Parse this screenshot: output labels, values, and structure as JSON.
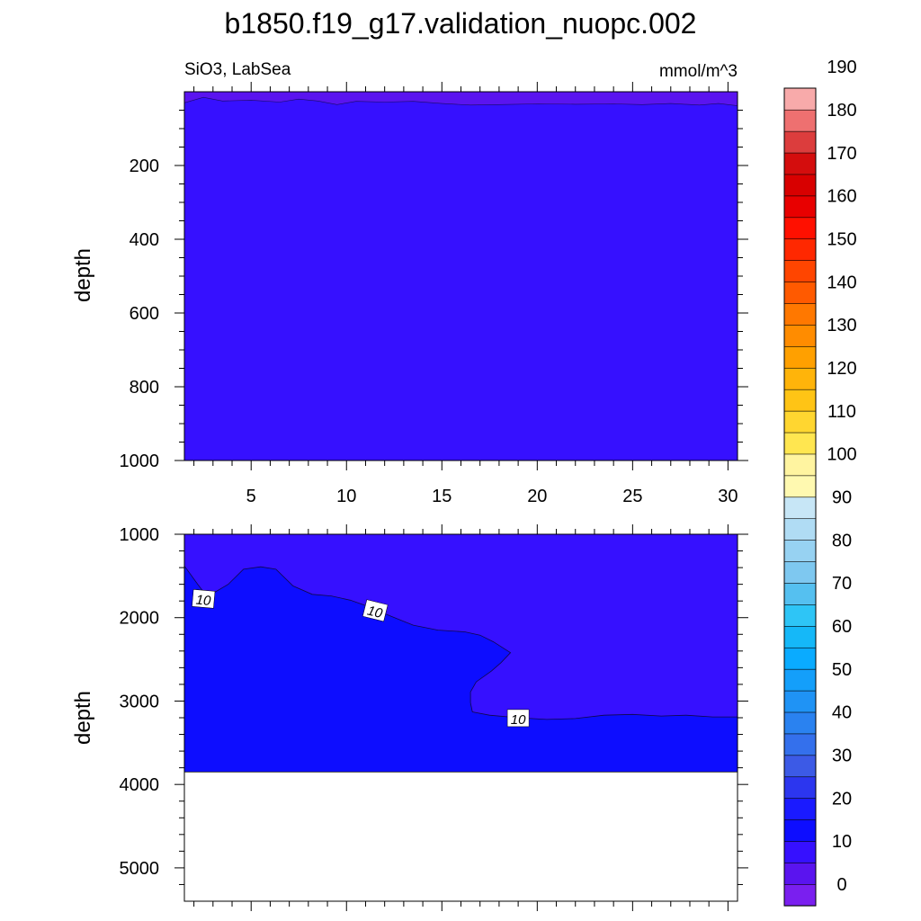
{
  "title": "b1850.f19_g17.validation_nuopc.002",
  "chart_data": [
    {
      "type": "contour",
      "panel": "top",
      "left_string": "SiO3, LabSea",
      "right_string": "mmol/m^3",
      "ylabel": "depth",
      "xlabel": "",
      "xlim": [
        1.5,
        30.5
      ],
      "ylim": [
        0,
        1000
      ],
      "y_reversed": true,
      "x_ticks": [
        "5",
        "10",
        "15",
        "20",
        "25",
        "30"
      ],
      "y_ticks": [
        "200",
        "400",
        "600",
        "800",
        "1000"
      ],
      "fill_level_color": "#3610ff",
      "surface_level_color": "#5a14ef",
      "surface_boundary_depth": [
        [
          1.5,
          30
        ],
        [
          2.5,
          15
        ],
        [
          3.5,
          25
        ],
        [
          5,
          23
        ],
        [
          6.5,
          28
        ],
        [
          7.5,
          20
        ],
        [
          8.5,
          25
        ],
        [
          9.5,
          35
        ],
        [
          10.5,
          26
        ],
        [
          12,
          28
        ],
        [
          13.5,
          26
        ],
        [
          15,
          32
        ],
        [
          16.5,
          36
        ],
        [
          18,
          35
        ],
        [
          20,
          33
        ],
        [
          22,
          34
        ],
        [
          24,
          33
        ],
        [
          25.5,
          35
        ],
        [
          27,
          32
        ],
        [
          28.5,
          36
        ],
        [
          29.5,
          32
        ],
        [
          30.5,
          38
        ]
      ]
    },
    {
      "type": "contour",
      "panel": "bottom",
      "ylabel": "depth",
      "xlabel": "",
      "xlim": [
        1.5,
        30.5
      ],
      "ylim": [
        1000,
        5400
      ],
      "y_reversed": true,
      "y_ticks": [
        "1000",
        "2000",
        "3000",
        "4000",
        "5000"
      ],
      "ocean_bottom_depth": 3850,
      "contour_value_label": "10",
      "contour_label_positions": [
        [
          2.5,
          1780
        ],
        [
          11.5,
          1920
        ],
        [
          19,
          3210
        ]
      ],
      "upper_fill_color": "#3610ff",
      "lower_fill_color": "#0d0dff",
      "contour_10_line": [
        [
          1.5,
          1380
        ],
        [
          2.2,
          1600
        ],
        [
          2.7,
          1750
        ],
        [
          3.8,
          1600
        ],
        [
          4.6,
          1420
        ],
        [
          5.5,
          1390
        ],
        [
          6.3,
          1420
        ],
        [
          7.2,
          1620
        ],
        [
          8.2,
          1720
        ],
        [
          9.2,
          1740
        ],
        [
          10.2,
          1790
        ],
        [
          11.2,
          1870
        ],
        [
          12.3,
          1980
        ],
        [
          13.5,
          2090
        ],
        [
          14.8,
          2150
        ],
        [
          16.2,
          2170
        ],
        [
          17,
          2210
        ],
        [
          17.7,
          2290
        ],
        [
          18.6,
          2420
        ],
        [
          18.1,
          2540
        ],
        [
          17.6,
          2640
        ],
        [
          16.8,
          2770
        ],
        [
          16.5,
          2890
        ],
        [
          16.5,
          3020
        ],
        [
          16.6,
          3130
        ],
        [
          17.5,
          3170
        ],
        [
          19,
          3200
        ],
        [
          20.5,
          3220
        ],
        [
          22,
          3210
        ],
        [
          23.5,
          3170
        ],
        [
          25,
          3160
        ],
        [
          26.5,
          3180
        ],
        [
          27.8,
          3170
        ],
        [
          29.2,
          3190
        ],
        [
          30.5,
          3190
        ]
      ]
    }
  ],
  "colorbar": {
    "labels": [
      "0",
      "10",
      "20",
      "30",
      "40",
      "50",
      "60",
      "70",
      "80",
      "90",
      "100",
      "110",
      "120",
      "130",
      "140",
      "150",
      "160",
      "170",
      "180",
      "190"
    ],
    "colors": [
      "#7a1fef",
      "#5a14ef",
      "#3610ff",
      "#0d0dff",
      "#1a1aff",
      "#2c36ef",
      "#3c5ae6",
      "#3470ec",
      "#2a82f0",
      "#1f93f5",
      "#149ffa",
      "#0aabff",
      "#15b8f8",
      "#2ec5f6",
      "#55c0f0",
      "#7ec8f0",
      "#97d2f2",
      "#b0dcf4",
      "#c7e6f6",
      "#fff9b0",
      "#fff4a0",
      "#ffe650",
      "#ffd630",
      "#ffc415",
      "#ffb40a",
      "#ffa000",
      "#ff8c00",
      "#ff7800",
      "#ff5a00",
      "#ff4500",
      "#ff2800",
      "#ff1000",
      "#e80000",
      "#d80000",
      "#d40d0d",
      "#dc3d3d",
      "#ee7070",
      "#f8aaaa"
    ]
  }
}
